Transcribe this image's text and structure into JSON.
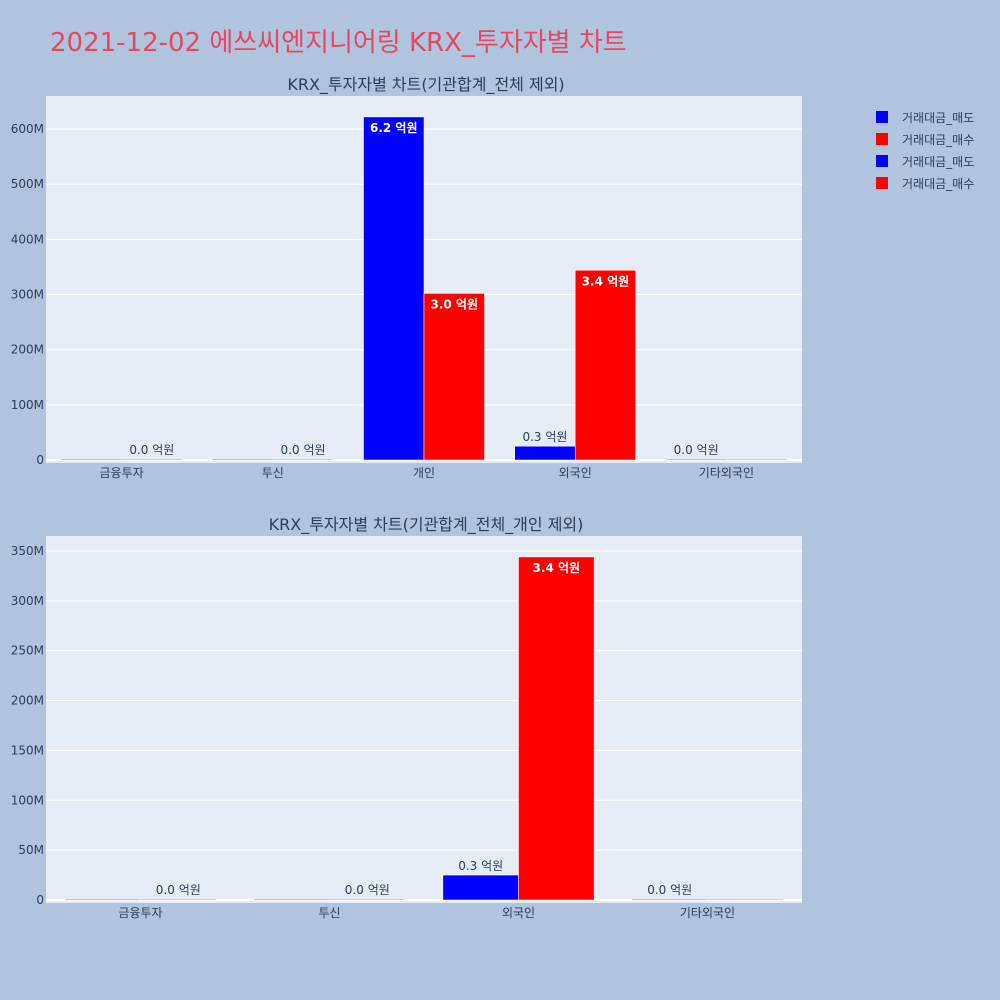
{
  "title": "2021-12-02 에쓰씨엔지니어링 KRX_투자자별 차트",
  "colors": {
    "sell": "#0000ff",
    "buy": "#ff0000",
    "plot_bg": "#e5ecf6",
    "page_bg": "#b0c4de"
  },
  "legend": [
    {
      "label": "거래대금_매도",
      "color": "#0000ff"
    },
    {
      "label": "거래대금_매수",
      "color": "#ff0000"
    },
    {
      "label": "거래대금_매도",
      "color": "#0000ff"
    },
    {
      "label": "거래대금_매수",
      "color": "#ff0000"
    }
  ],
  "chart_data": [
    {
      "type": "bar",
      "title": "KRX_투자자별 차트(기관합계_전체 제외)",
      "categories": [
        "금융투자",
        "투신",
        "개인",
        "외국인",
        "기타외국인"
      ],
      "series": [
        {
          "name": "거래대금_매도",
          "values": [
            0,
            0,
            622000000,
            25000000,
            0
          ],
          "labels": [
            "",
            "",
            "6.2 억원",
            "0.3 억원",
            "0.0 억원"
          ]
        },
        {
          "name": "거래대금_매수",
          "values": [
            0,
            0,
            302000000,
            344000000,
            0
          ],
          "labels": [
            "0.0 억원",
            "0.0 억원",
            "3.0 억원",
            "3.4 억원",
            ""
          ]
        }
      ],
      "yticks": [
        "0",
        "100M",
        "200M",
        "300M",
        "400M",
        "500M",
        "600M"
      ],
      "ylim": [
        0,
        660000000
      ]
    },
    {
      "type": "bar",
      "title": "KRX_투자자별 차트(기관합계_전체_개인 제외)",
      "categories": [
        "금융투자",
        "투신",
        "외국인",
        "기타외국인"
      ],
      "series": [
        {
          "name": "거래대금_매도",
          "values": [
            0,
            0,
            25000000,
            0
          ],
          "labels": [
            "",
            "",
            "0.3 억원",
            "0.0 억원"
          ]
        },
        {
          "name": "거래대금_매수",
          "values": [
            0,
            0,
            344000000,
            0
          ],
          "labels": [
            "0.0 억원",
            "0.0 억원",
            "3.4 억원",
            ""
          ]
        }
      ],
      "yticks": [
        "0",
        "50M",
        "100M",
        "150M",
        "200M",
        "250M",
        "300M",
        "350M"
      ],
      "ylim": [
        0,
        365000000
      ]
    }
  ]
}
